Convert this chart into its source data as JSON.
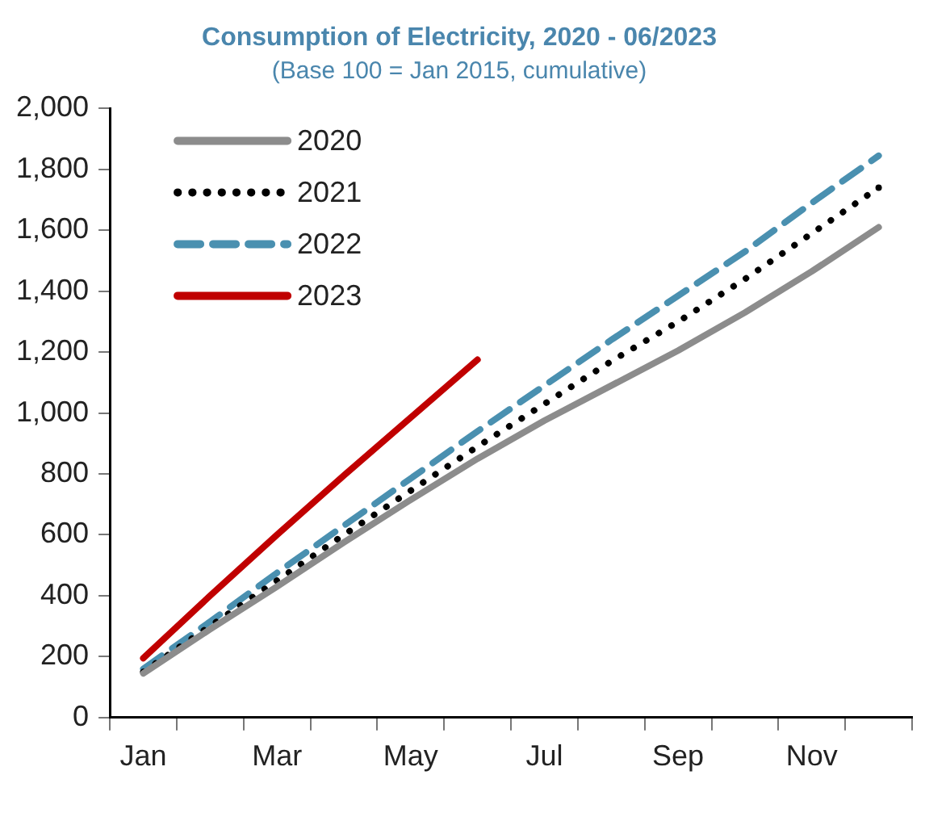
{
  "chart_data": {
    "type": "line",
    "title": "Consumption of Electricity, 2020 - 06/2023",
    "subtitle": "(Base 100 = Jan 2015, cumulative)",
    "categories": [
      "Jan",
      null,
      "Mar",
      null,
      "May",
      null,
      "Jul",
      null,
      "Sep",
      null,
      "Nov",
      null
    ],
    "series": [
      {
        "name": "2020",
        "color": "#8c8c8c",
        "line_style": "solid",
        "values": [
          145,
          290,
          430,
          575,
          715,
          850,
          975,
          1090,
          1205,
          1330,
          1465,
          1610
        ]
      },
      {
        "name": "2021",
        "color": "#000000",
        "line_style": "dotted",
        "values": [
          150,
          300,
          450,
          600,
          745,
          890,
          1030,
          1170,
          1300,
          1440,
          1590,
          1740
        ]
      },
      {
        "name": "2022",
        "color": "#4a90b0",
        "line_style": "dashed",
        "values": [
          160,
          315,
          475,
          630,
          785,
          940,
          1090,
          1240,
          1385,
          1530,
          1690,
          1845
        ]
      },
      {
        "name": "2023",
        "color": "#c00000",
        "line_style": "solid",
        "values": [
          195,
          400,
          600,
          795,
          985,
          1175,
          null,
          null,
          null,
          null,
          null,
          null
        ]
      }
    ],
    "ylim": [
      0,
      2000
    ],
    "yticks": [
      0,
      200,
      400,
      600,
      800,
      {
        "value": 1000,
        "label": "1,000"
      },
      {
        "value": 1200,
        "label": "1,200"
      },
      {
        "value": 1400,
        "label": "1,400"
      },
      {
        "value": 1600,
        "label": "1,600"
      },
      {
        "value": 1800,
        "label": "1,800"
      },
      {
        "value": 2000,
        "label": "2,000"
      }
    ],
    "grid": false,
    "legend": "top left",
    "marker": "none"
  }
}
